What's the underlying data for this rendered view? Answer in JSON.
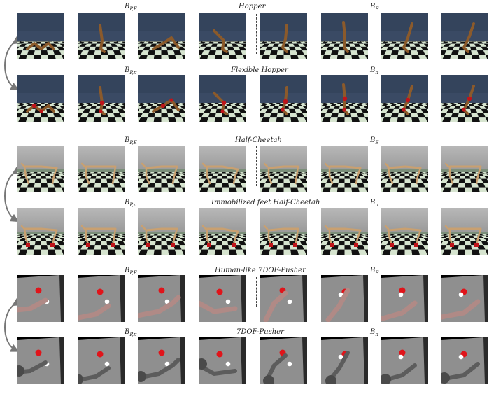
{
  "panels": [
    {
      "id": "hopper",
      "top_left_label": "B",
      "top_left_sub": "P,E",
      "top_center_label": "Hopper",
      "top_right_label": "B",
      "top_right_sub": "E",
      "bottom_left_label": "B",
      "bottom_left_sub": "P,π",
      "bottom_center_label": "Flexible Hopper",
      "bottom_right_label": "B",
      "bottom_right_sub": "π"
    },
    {
      "id": "cheetah",
      "top_left_label": "B",
      "top_left_sub": "P,E",
      "top_center_label": "Half-Cheetah",
      "top_right_label": "B",
      "top_right_sub": "E",
      "bottom_left_label": "B",
      "bottom_left_sub": "P,π",
      "bottom_center_label": "Immobilized feet Half-Cheetah",
      "bottom_right_label": "B",
      "bottom_right_sub": "π"
    },
    {
      "id": "pusher",
      "top_left_label": "B",
      "top_left_sub": "P,E",
      "top_center_label": "Human-like 7DOF-Pusher",
      "top_right_label": "B",
      "top_right_sub": "E",
      "bottom_left_label": "B",
      "bottom_left_sub": "P,π",
      "bottom_center_label": "7DOF-Pusher",
      "bottom_right_label": "B",
      "bottom_right_sub": "π"
    }
  ],
  "colors": {
    "hopper_sky": "#3a4a64",
    "checker_light": "#d6e4cf",
    "checker_dark": "#111111",
    "cheetah_sky": "#9a9a9a",
    "pusher_bg": "#000000",
    "pusher_table": "#8f8f8f",
    "hopper_limb": "#8b5a2b",
    "flex_joint": "#c0141a",
    "cheetah_limb": "#c9a070",
    "human_arm": "#b08a86",
    "robot_arm": "#5c5c5c",
    "goal": "#e0141a",
    "puck": "#ffffff"
  }
}
